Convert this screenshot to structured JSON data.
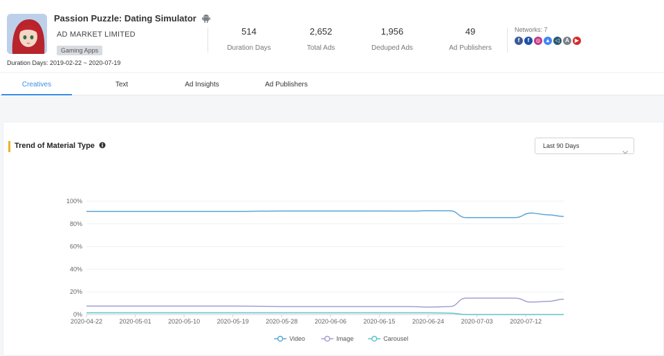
{
  "app": {
    "title": "Passion Puzzle: Dating Simulator",
    "publisher": "AD MARKET LIMITED",
    "category": "Gaming Apps",
    "duration_range": "Duration Days: 2019-02-22 ~ 2020-07-19"
  },
  "stats": [
    {
      "value": "514",
      "label": "Duration Days"
    },
    {
      "value": "2,652",
      "label": "Total Ads"
    },
    {
      "value": "1,956",
      "label": "Deduped Ads"
    },
    {
      "value": "49",
      "label": "Ad Publishers"
    }
  ],
  "networks": {
    "label": "Networks: 7",
    "icons": [
      {
        "name": "facebook-icon",
        "glyph": "f",
        "color": "#3b5998"
      },
      {
        "name": "facebook-icon",
        "glyph": "f",
        "color": "#1d4fa8"
      },
      {
        "name": "instagram-icon",
        "glyph": "◎",
        "color": "#c13584"
      },
      {
        "name": "admob-icon",
        "glyph": "▲",
        "color": "#4285f4"
      },
      {
        "name": "unity-icon",
        "glyph": "◁",
        "color": "#2b5a74"
      },
      {
        "name": "appstore-icon",
        "glyph": "A",
        "color": "#7b7f86"
      },
      {
        "name": "youtube-icon",
        "glyph": "▶",
        "color": "#d62b2b"
      }
    ]
  },
  "tabs": [
    "Creatives",
    "Text",
    "Ad Insights",
    "Ad Publishers"
  ],
  "panel": {
    "title": "Trend of Material Type",
    "range": "Last 90 Days"
  },
  "chart_data": {
    "type": "line",
    "title": "Trend of Material Type",
    "x_ticks": [
      "2020-04-22",
      "2020-05-01",
      "2020-05-10",
      "2020-05-19",
      "2020-05-28",
      "2020-06-06",
      "2020-06-15",
      "2020-06-24",
      "2020-07-03",
      "2020-07-12"
    ],
    "y_ticks": [
      "0%",
      "20%",
      "40%",
      "60%",
      "80%",
      "100%"
    ],
    "ylim": [
      0,
      100
    ],
    "x_range": [
      "2020-04-22",
      "2020-07-19"
    ],
    "grid": true,
    "legend_position": "bottom",
    "series": [
      {
        "name": "Video",
        "color": "#5aa7d6",
        "points": [
          [
            "2020-04-22",
            91
          ],
          [
            "2020-05-01",
            91
          ],
          [
            "2020-05-10",
            91
          ],
          [
            "2020-05-19",
            91
          ],
          [
            "2020-05-28",
            91.3
          ],
          [
            "2020-06-06",
            91.3
          ],
          [
            "2020-06-15",
            91.3
          ],
          [
            "2020-06-21",
            91.2
          ],
          [
            "2020-06-24",
            91.6
          ],
          [
            "2020-06-28",
            91.5
          ],
          [
            "2020-07-01",
            85.5
          ],
          [
            "2020-07-06",
            85.5
          ],
          [
            "2020-07-10",
            85.5
          ],
          [
            "2020-07-13",
            89.5
          ],
          [
            "2020-07-16",
            88
          ],
          [
            "2020-07-19",
            86.5
          ]
        ]
      },
      {
        "name": "Image",
        "color": "#a3a0cf",
        "points": [
          [
            "2020-04-22",
            7.5
          ],
          [
            "2020-05-01",
            7.5
          ],
          [
            "2020-05-10",
            7.5
          ],
          [
            "2020-05-19",
            7.5
          ],
          [
            "2020-05-28",
            7
          ],
          [
            "2020-06-06",
            7
          ],
          [
            "2020-06-15",
            7
          ],
          [
            "2020-06-21",
            7
          ],
          [
            "2020-06-24",
            6.5
          ],
          [
            "2020-06-28",
            7
          ],
          [
            "2020-07-01",
            14.5
          ],
          [
            "2020-07-06",
            14.5
          ],
          [
            "2020-07-10",
            14.5
          ],
          [
            "2020-07-13",
            11
          ],
          [
            "2020-07-16",
            11.5
          ],
          [
            "2020-07-19",
            13.5
          ]
        ]
      },
      {
        "name": "Carousel",
        "color": "#5ec4c8",
        "points": [
          [
            "2020-04-22",
            1.5
          ],
          [
            "2020-05-01",
            1.5
          ],
          [
            "2020-05-10",
            1.5
          ],
          [
            "2020-05-19",
            1.5
          ],
          [
            "2020-05-28",
            1.5
          ],
          [
            "2020-06-06",
            1.5
          ],
          [
            "2020-06-15",
            1.5
          ],
          [
            "2020-06-21",
            1.5
          ],
          [
            "2020-06-24",
            1.5
          ],
          [
            "2020-06-28",
            1.2
          ],
          [
            "2020-07-01",
            0
          ],
          [
            "2020-07-06",
            0
          ],
          [
            "2020-07-10",
            0
          ],
          [
            "2020-07-13",
            0
          ],
          [
            "2020-07-16",
            0
          ],
          [
            "2020-07-19",
            0
          ]
        ]
      }
    ]
  }
}
